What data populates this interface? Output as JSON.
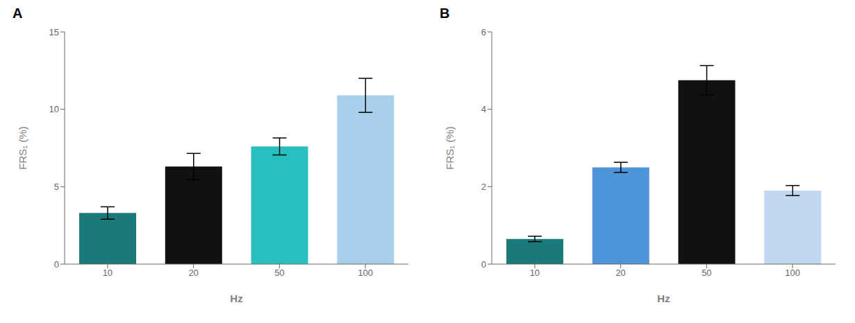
{
  "chart_data": [
    {
      "type": "bar",
      "title": "A",
      "categories": [
        "10",
        "20",
        "50",
        "100"
      ],
      "values": [
        3.3,
        6.3,
        7.6,
        10.9
      ],
      "errors": [
        0.4,
        0.85,
        0.55,
        1.1
      ],
      "colors": [
        "#1a7a7a",
        "#111111",
        "#2abfbf",
        "#a8d0ec"
      ],
      "xlabel": "Hz",
      "ylabel": "FRS₁ (%)",
      "ylim": [
        0,
        15
      ],
      "yticks": [
        0,
        5,
        10,
        15
      ],
      "grid": false
    },
    {
      "type": "bar",
      "title": "B",
      "categories": [
        "10",
        "20",
        "50",
        "100"
      ],
      "values": [
        0.65,
        2.5,
        4.75,
        1.9
      ],
      "errors": [
        0.07,
        0.13,
        0.38,
        0.13
      ],
      "colors": [
        "#1a7a7a",
        "#4d94d9",
        "#111111",
        "#c0d8f0"
      ],
      "xlabel": "Hz",
      "ylabel": "FRS₁ (%)",
      "ylim": [
        0,
        6
      ],
      "yticks": [
        0,
        2,
        4,
        6
      ],
      "grid": false
    }
  ]
}
